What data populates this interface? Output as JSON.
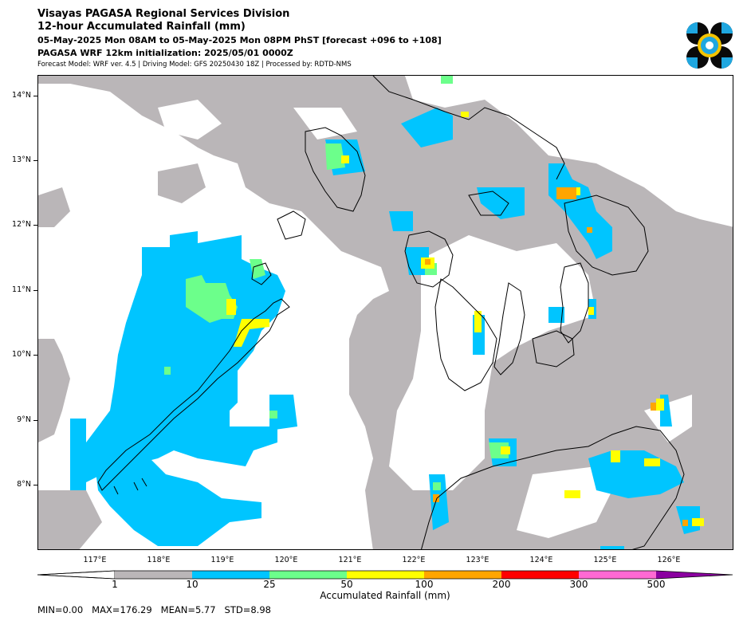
{
  "header": {
    "title": "Visayas PAGASA Regional Services Division",
    "subtitle": "12-hour Accumulated Rainfall (mm)",
    "period": "05-May-2025 Mon 08AM to 05-May-2025 Mon 08PM PhST [forecast +096 to +108]",
    "init": "PAGASA WRF 12km initialization: 2025/05/01 0000Z",
    "model_info": "Forecast Model: WRF ver. 4.5 | Driving Model: GFS 20250430 18Z | Processed by: RDTD-NMS"
  },
  "logo": {
    "icon": "pagasa-logo-icon",
    "colors": [
      "#0a0a0a",
      "#1fa7e0",
      "#f5c400"
    ]
  },
  "map": {
    "lat_labels": [
      "14°N",
      "13°N",
      "12°N",
      "11°N",
      "10°N",
      "9°N",
      "8°N"
    ],
    "lon_labels": [
      "117°E",
      "118°E",
      "119°E",
      "120°E",
      "121°E",
      "122°E",
      "123°E",
      "124°E",
      "125°E",
      "126°E"
    ],
    "extent": {
      "lon": [
        116.0,
        126.9
      ],
      "lat": [
        7.0,
        14.3
      ]
    },
    "coastline_color": "#000000",
    "features": [
      "Palawan",
      "Mindoro",
      "Panay",
      "Negros",
      "Cebu",
      "Bohol",
      "Leyte",
      "Samar",
      "Mindanao"
    ]
  },
  "colorbar": {
    "title": "Accumulated Rainfall (mm)",
    "levels": [
      "1",
      "10",
      "25",
      "50",
      "100",
      "200",
      "300",
      "500"
    ],
    "colors": [
      "#bab6b8",
      "#00c5ff",
      "#6cff8b",
      "#ffff00",
      "#ffa500",
      "#ff0000",
      "#ff69d3",
      "#8b00a0"
    ]
  },
  "stats": {
    "min": "MIN=0.00",
    "max": "MAX=176.29",
    "mean": "MEAN=5.77",
    "std": "STD=8.98"
  }
}
